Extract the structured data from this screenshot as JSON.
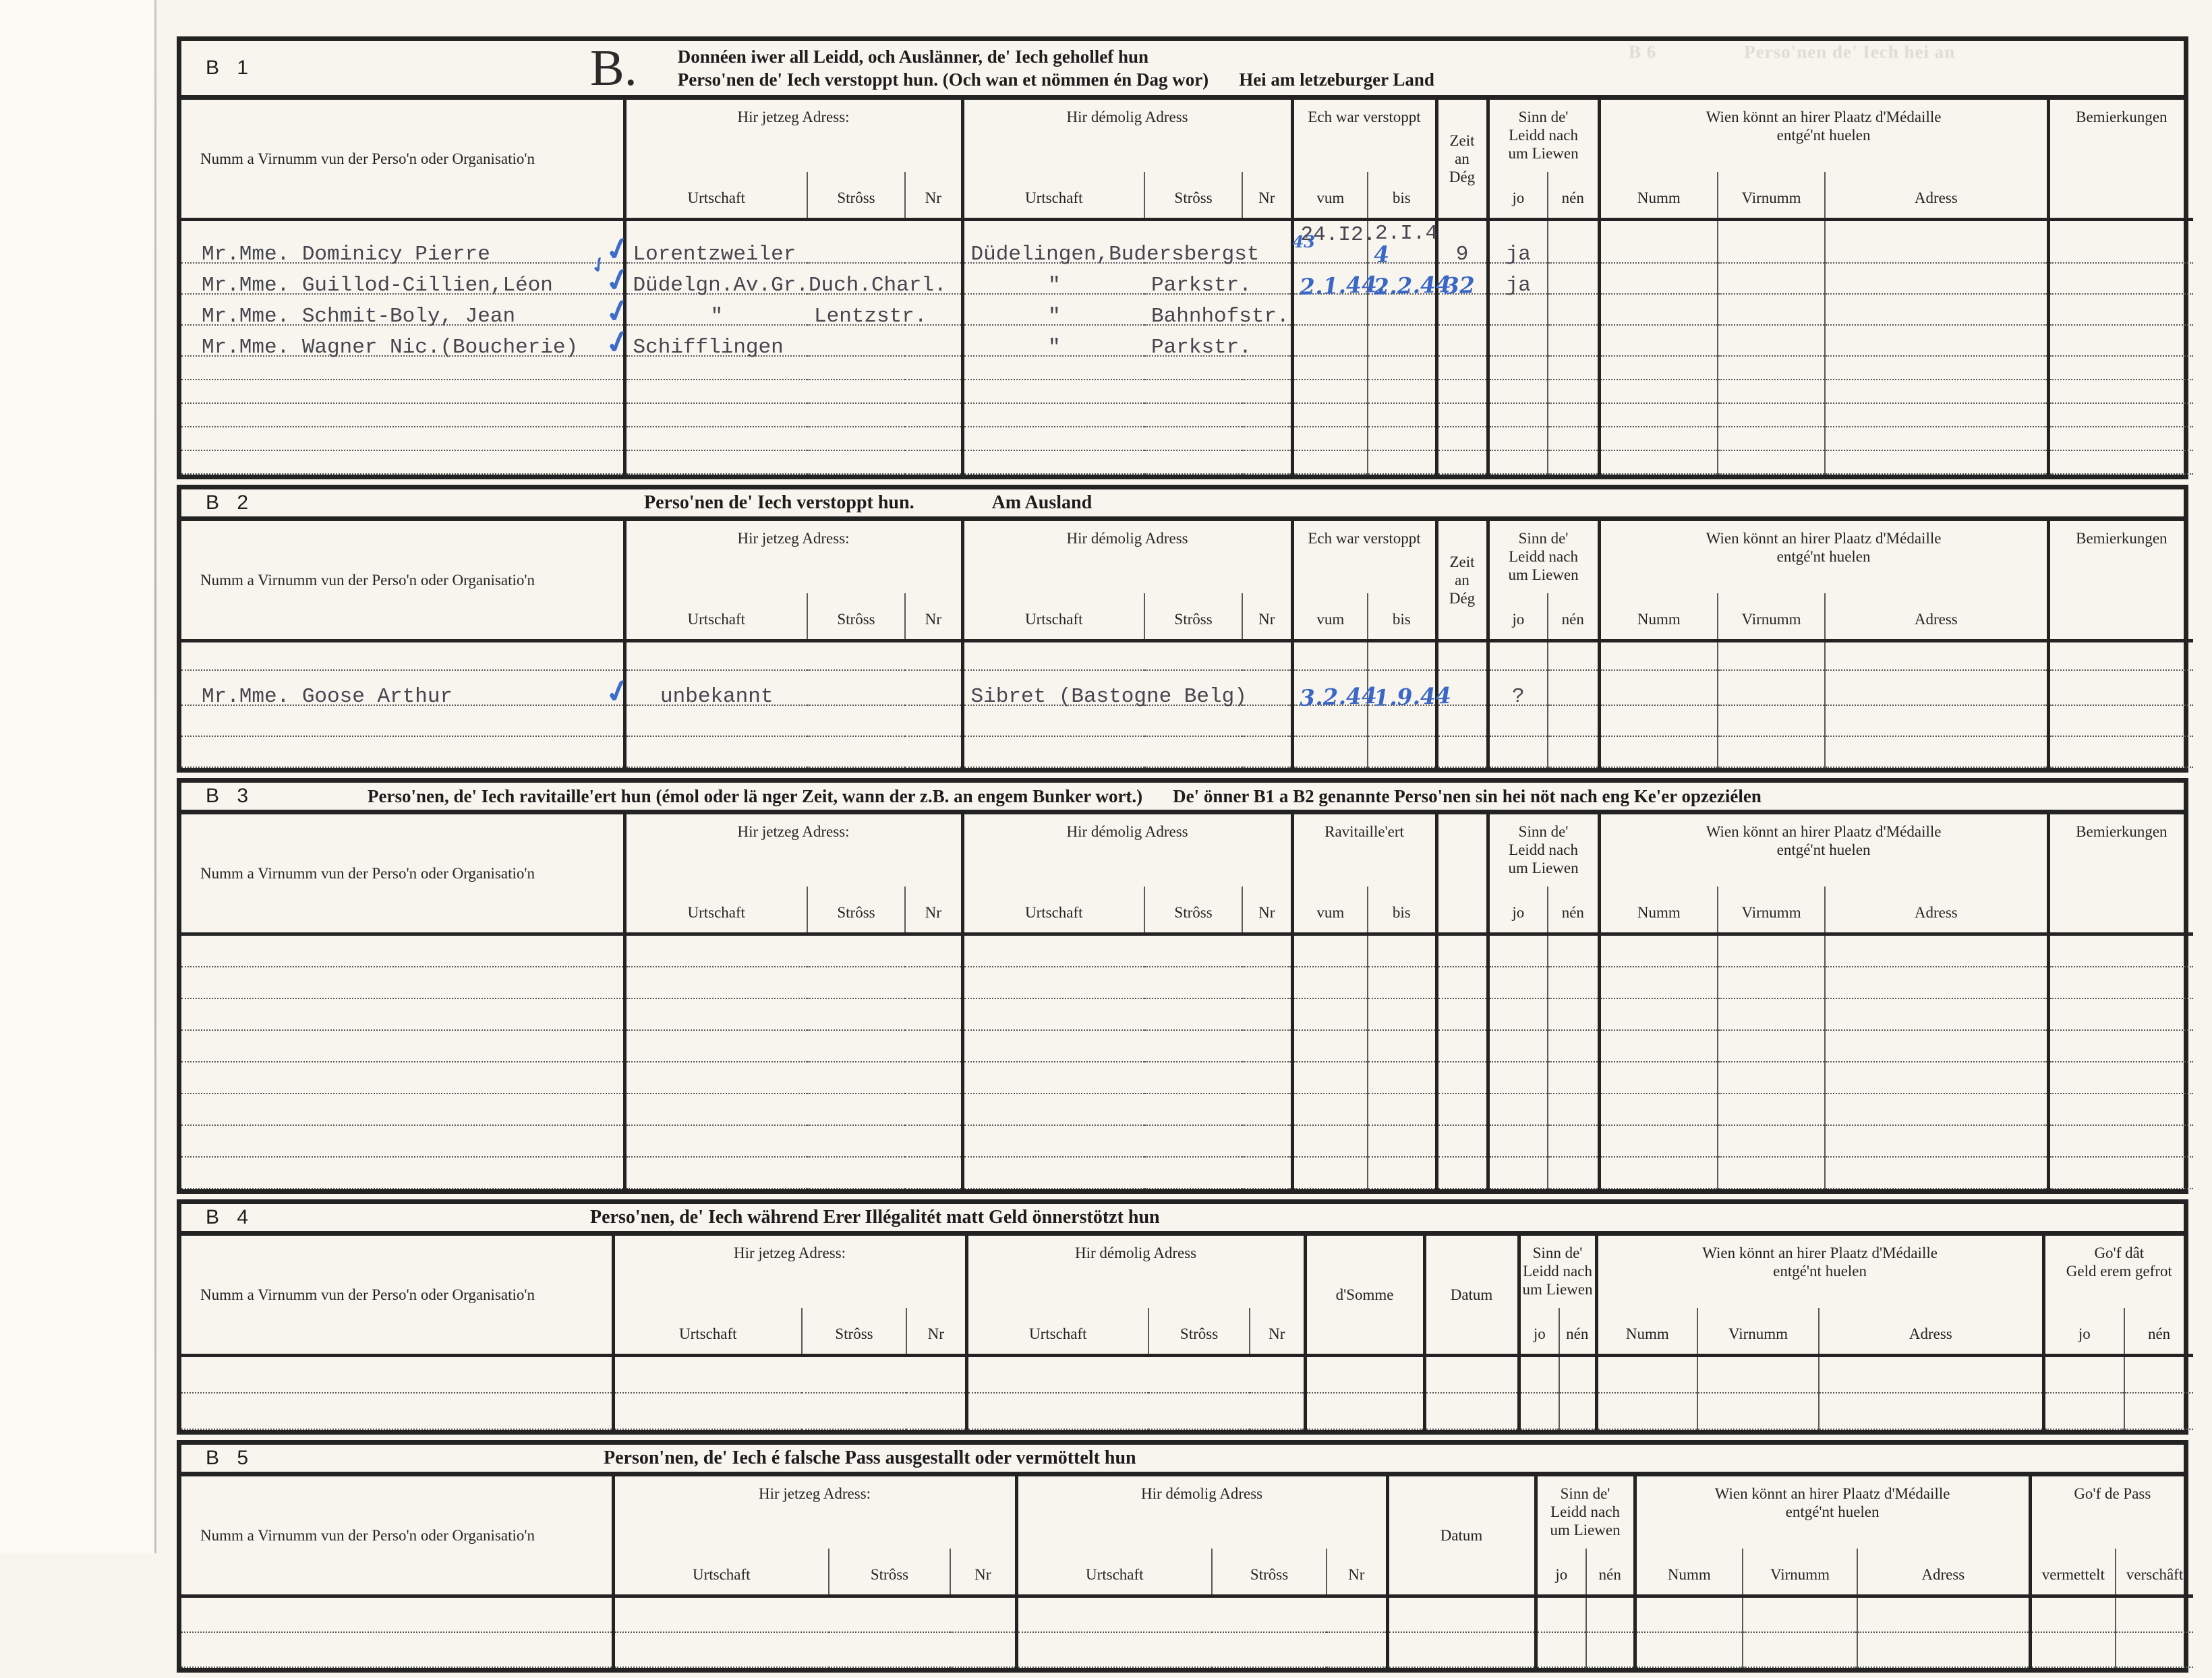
{
  "colors": {
    "paper": "#f7f5ee",
    "ink": "#232323",
    "typed_ink": "#45454f",
    "handwriting_blue": "#3b67c5"
  },
  "bleedthrough": {
    "label": "B 6",
    "text": "Perso'nen de' Iech hei an"
  },
  "hdr": {
    "name_col": "Numm a Virnumm vun der Perso'n oder Organisatio'n",
    "jetzeg": "Hir jetzeg Adress:",
    "demolig": "Hir démolig Adress",
    "urtschaft": "Urtschaft",
    "stross": "Strôss",
    "nr": "Nr",
    "verstoppt": "Ech war verstoppt",
    "vum": "vum",
    "bis": "bis",
    "zeit1": "Zeit",
    "zeit2": "an",
    "zeit3": "Dég",
    "sinn1": "Sinn de'",
    "sinn2": "Leidd nach",
    "sinn3": "um Liewen",
    "jo": "jo",
    "nen": "nén",
    "wien1": "Wien könnt an hirer Plaatz d'Médaille",
    "wien2": "entgé'nt huelen",
    "numm": "Numm",
    "virnumm": "Virnumm",
    "adress": "Adress",
    "bem": "Bemierkungen",
    "ravitailleert": "Ravitaille'ert",
    "somme": "d'Somme",
    "datum": "Datum",
    "gof_geld1": "Go'f dât",
    "gof_geld2": "Geld erem gefrot",
    "gof_pass": "Go'f de Pass",
    "vermettelt": "vermettelt",
    "verschaeft": "verschâft"
  },
  "sections": {
    "b1": {
      "id": "B 1",
      "big_letter": "B.",
      "title1": "Donnéen iwer all Leidd, och Auslänner, de' Iech gehollef hun",
      "title2": "Perso'nen de' Iech verstoppt hun. (Och wan et nömmen én Dag wor)",
      "title2b": "Hei am letzeburger Land",
      "rows": [
        {
          "typed": true,
          "cells": {
            "name": {
              "t": "Mr.Mme. Dominicy Pierre",
              "check": 2
            },
            "ju": {
              "t": "Lorentzweiler"
            },
            "du": {
              "t": "Düdelingen,Budersbergst"
            },
            "vum": {
              "t": "24.I2.",
              "sup": "43"
            },
            "bis": {
              "t": "2.I.4",
              "hw": "4"
            },
            "zeit": {
              "t": "9",
              "c": 1
            },
            "jo": {
              "t": "ja",
              "c": 1
            }
          }
        },
        {
          "typed": true,
          "cells": {
            "name": {
              "t": "Mr.Mme. Guillod-Cillien,Léon",
              "check": 1
            },
            "ju": {
              "t": "Düdelgn.Av.Gr.Duch.Charl."
            },
            "du": {
              "t": "\"",
              "c": 1
            },
            "ds": {
              "t": "Parkstr."
            },
            "vum": {
              "hw": "2.1.44."
            },
            "bis": {
              "hw": "2.2.44"
            },
            "zeit": {
              "hw": "32"
            },
            "jo": {
              "t": "ja",
              "c": 1
            }
          }
        },
        {
          "typed": true,
          "cells": {
            "name": {
              "t": "Mr.Mme. Schmit-Boly, Jean",
              "check": 1
            },
            "ju": {
              "t": "\"",
              "c": 1
            },
            "js": {
              "t": "Lentzstr."
            },
            "du": {
              "t": "\"",
              "c": 1
            },
            "ds": {
              "t": "Bahnhofstr."
            }
          }
        },
        {
          "typed": true,
          "cells": {
            "name": {
              "t": "Mr.Mme. Wagner Nic.(Boucherie)",
              "check": 1
            },
            "ju": {
              "t": "Schifflingen"
            },
            "du": {
              "t": "\"",
              "c": 1
            },
            "ds": {
              "t": "Parkstr."
            }
          }
        },
        {
          "blank": true
        },
        {
          "blank": true
        },
        {
          "blank": true
        },
        {
          "blank": true
        },
        {
          "blank": true
        }
      ]
    },
    "b2": {
      "id": "B 2",
      "title": "Perso'nen de' Iech verstoppt hun.",
      "title_right": "Am Ausland",
      "rows": [
        {
          "blank": true
        },
        {
          "typed": true,
          "cells": {
            "name": {
              "t": "Mr.Mme. Goose Arthur",
              "check": 1
            },
            "ju": {
              "t": "unbekannt",
              "c": 1
            },
            "du": {
              "t": "Sibret (Bastogne Belg)"
            },
            "vum": {
              "hw": "3.2.44"
            },
            "bis": {
              "hw": "1.9.44"
            },
            "jo": {
              "t": "?",
              "c": 1
            }
          }
        },
        {
          "blank": true
        },
        {
          "blank": true
        }
      ]
    },
    "b3": {
      "id": "B 3",
      "title": "Perso'nen, de' Iech ravitaille'ert hun (émol oder lä nger Zeit, wann der z.B. an engem Bunker wort.)",
      "title2": "De' önner B1 a B2 genannte Perso'nen sin hei nöt nach eng Ke'er opzeziélen",
      "rows": [
        {
          "blank": true
        },
        {
          "blank": true
        },
        {
          "blank": true
        },
        {
          "blank": true
        },
        {
          "blank": true
        },
        {
          "blank": true
        },
        {
          "blank": true
        },
        {
          "blank": true
        }
      ]
    },
    "b4": {
      "id": "B 4",
      "title": "Perso'nen, de' Iech während Erer Illégalitét matt Geld önnerstötzt hun",
      "rows": [
        {
          "blank": true
        },
        {
          "blank": true
        }
      ]
    },
    "b5": {
      "id": "B 5",
      "title": "Person'nen, de' Iech é falsche Pass ausgestallt oder vermöttelt hun",
      "rows": [
        {
          "blank": true
        },
        {
          "blank": true
        }
      ]
    }
  }
}
